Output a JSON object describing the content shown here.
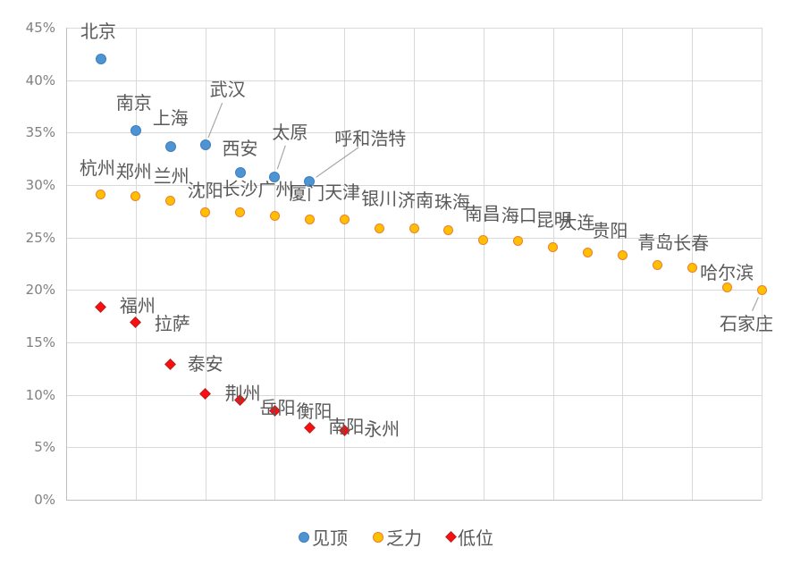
{
  "chart_data": {
    "type": "scatter",
    "title": "",
    "xlabel": "",
    "ylabel": "",
    "y_axis": {
      "min": 0,
      "max": 45,
      "step": 5,
      "tick_labels": [
        "45%",
        "40%",
        "35%",
        "30%",
        "25%",
        "20%",
        "15%",
        "10%",
        "5%",
        "0%"
      ],
      "format": "percent"
    },
    "x_axis": {
      "type": "index",
      "max_points": 20,
      "tick_labels_shown": false,
      "gridline_count": 10
    },
    "grid": true,
    "legend_position": "bottom-center",
    "style": {
      "label_text_color": "#595959",
      "axis_text_color": "#808080",
      "gridline_color": "#d9d9d9",
      "axis_line_color": "#bfbfbf",
      "leader_line_color": "#a8a8a8",
      "background": "#ffffff"
    },
    "series": [
      {
        "name": "见顶",
        "marker": "circle",
        "fill": "#4E94D3",
        "stroke": "#3D7EBE",
        "points": [
          {
            "city": "北京",
            "value": 42.0,
            "label_dx": -3,
            "label_dy": -31
          },
          {
            "city": "南京",
            "value": 35.2,
            "label_dx": -2,
            "label_dy": -31
          },
          {
            "city": "上海",
            "value": 33.7,
            "label_dx": 0,
            "label_dy": -32
          },
          {
            "city": "武汉",
            "value": 33.8,
            "label_dx": 25,
            "label_dy": -62,
            "leader": true
          },
          {
            "city": "西安",
            "value": 31.2,
            "label_dx": 0,
            "label_dy": -27
          },
          {
            "city": "太原",
            "value": 30.8,
            "label_dx": 17,
            "label_dy": -50,
            "leader": true
          },
          {
            "city": "呼和浩特",
            "value": 30.3,
            "label_dx": 68,
            "label_dy": -48,
            "leader": true
          }
        ]
      },
      {
        "name": "乏力",
        "marker": "circle",
        "fill": "#FFC000",
        "stroke": "#ED7D31",
        "points": [
          {
            "city": "杭州",
            "value": 29.1,
            "label_dx": -4,
            "label_dy": -30
          },
          {
            "city": "郑州",
            "value": 28.9,
            "label_dx": -2,
            "label_dy": -28
          },
          {
            "city": "兰州",
            "value": 28.5,
            "label_dx": 1,
            "label_dy": -28
          },
          {
            "city": "沈阳",
            "value": 27.4,
            "label_dx": 0,
            "label_dy": -25
          },
          {
            "city": "长沙",
            "value": 27.4,
            "label_dx": 0,
            "label_dy": -27
          },
          {
            "city": "广州",
            "value": 27.1,
            "label_dx": 1,
            "label_dy": -29
          },
          {
            "city": "厦门",
            "value": 26.7,
            "label_dx": -3,
            "label_dy": -30
          },
          {
            "city": "天津",
            "value": 26.7,
            "label_dx": -2,
            "label_dy": -31
          },
          {
            "city": "银川",
            "value": 25.9,
            "label_dx": 0,
            "label_dy": -33
          },
          {
            "city": "济南",
            "value": 25.9,
            "label_dx": 2,
            "label_dy": -31
          },
          {
            "city": "珠海",
            "value": 25.7,
            "label_dx": 4,
            "label_dy": -31
          },
          {
            "city": "南昌",
            "value": 24.8,
            "label_dx": -1,
            "label_dy": -29
          },
          {
            "city": "海口",
            "value": 24.7,
            "label_dx": 1,
            "label_dy": -28
          },
          {
            "city": "昆明",
            "value": 24.1,
            "label_dx": 1,
            "label_dy": -30
          },
          {
            "city": "大连",
            "value": 23.6,
            "label_dx": -12,
            "label_dy": -33
          },
          {
            "city": "贵阳",
            "value": 23.3,
            "label_dx": -14,
            "label_dy": -28
          },
          {
            "city": "青岛",
            "value": 22.4,
            "label_dx": -2,
            "label_dy": -25
          },
          {
            "city": "长春",
            "value": 22.1,
            "label_dx": -1,
            "label_dy": -28
          },
          {
            "city": "哈尔滨",
            "value": 20.2,
            "label_dx": 0,
            "label_dy": -17
          },
          {
            "city": "石家庄",
            "value": 20.0,
            "label_dx": -17,
            "label_dy": 38,
            "leader": true
          }
        ]
      },
      {
        "name": "低位",
        "marker": "diamond",
        "fill": "#FF0D0D",
        "stroke": "#B22222",
        "points": [
          {
            "city": "福州",
            "value": 18.4,
            "label_dx": 41,
            "label_dy": -1
          },
          {
            "city": "拉萨",
            "value": 16.9,
            "label_dx": 41,
            "label_dy": 1
          },
          {
            "city": "泰安",
            "value": 12.9,
            "label_dx": 39,
            "label_dy": -1
          },
          {
            "city": "荆州",
            "value": 10.1,
            "label_dx": 42,
            "label_dy": 0
          },
          {
            "city": "岳阳",
            "value": 9.5,
            "label_dx": 42,
            "label_dy": 8
          },
          {
            "city": "衡阳",
            "value": 8.5,
            "label_dx": 44,
            "label_dy": 1
          },
          {
            "city": "南阳",
            "value": 6.9,
            "label_dx": 41,
            "label_dy": -1
          },
          {
            "city": "永州",
            "value": 6.6,
            "label_dx": 42,
            "label_dy": -2
          }
        ]
      }
    ]
  }
}
